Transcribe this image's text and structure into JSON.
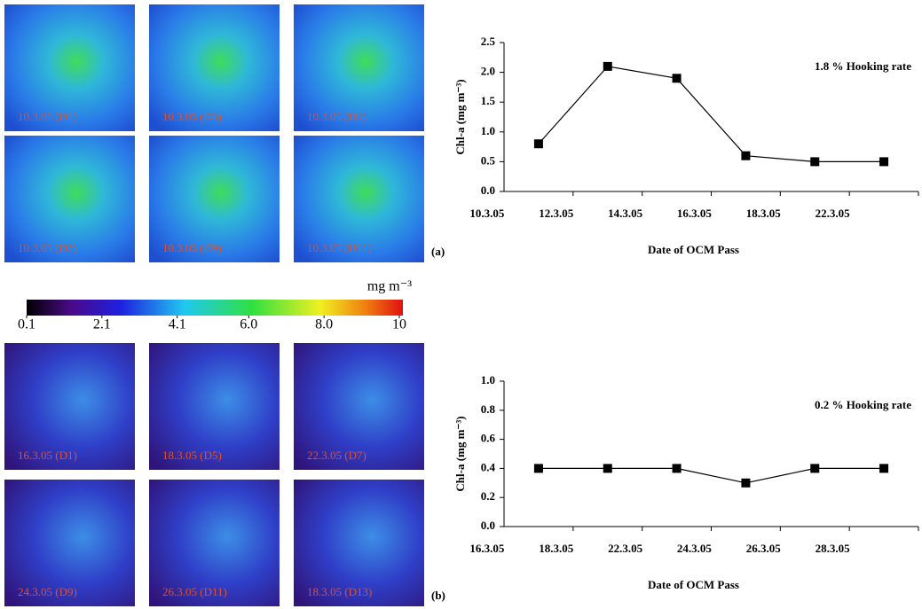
{
  "chart_data": [
    {
      "type": "line",
      "categories": [
        "10.3.05",
        "12.3.05",
        "14.3.05",
        "16.3.05",
        "18.3.05",
        "22.3.05"
      ],
      "values": [
        0.8,
        2.1,
        1.9,
        0.6,
        0.5,
        0.5
      ],
      "color": "#000000",
      "ylim": [
        0,
        2.5
      ],
      "yticks": [
        {
          "value": 0,
          "label": "0.0"
        },
        0.5,
        {
          "value": 1,
          "label": "1.0"
        },
        1.5,
        {
          "value": 2,
          "label": "2.0"
        },
        2.5
      ],
      "y_label": "Chl-a (mg m⁻³)",
      "x_label": "Date of OCM Pass",
      "annotation": "1.8 % Hooking rate"
    },
    {
      "type": "line",
      "categories": [
        "16.3.05",
        "18.3.05",
        "22.3.05",
        "24.3.05",
        "26.3.05",
        "28.3.05"
      ],
      "values": [
        0.4,
        0.4,
        0.4,
        0.3,
        0.4,
        0.4
      ],
      "color": "#000000",
      "ylim": [
        0,
        1
      ],
      "yticks": [
        {
          "value": 0,
          "label": "0.0"
        },
        0.2,
        0.4,
        0.6,
        0.8,
        {
          "value": 1,
          "label": "1.0"
        }
      ],
      "y_label": "Chl-a (mg m⁻³)",
      "x_label": "Date of OCM Pass",
      "annotation": "0.2 % Hooking rate"
    }
  ],
  "panels": [
    {
      "label": "(a)",
      "tiles": [
        "10.3.05 (D1)",
        "10.3.05 (D3)",
        "10.3.05 (D5)",
        "10.3.05 (D7)",
        "10.3.05 (D9)",
        "10.3.05 (D11)"
      ]
    },
    {
      "label": "(b)",
      "tiles": [
        "16.3.05 (D1)",
        "18.3.05 (D5)",
        "22.3.05 (D7)",
        "24.3.05 (D9)",
        "26.3.05 (D11)",
        "18.3.05 (D13)"
      ]
    }
  ],
  "colorbar": {
    "unit": "mg m⁻³",
    "xlim": [
      0.1,
      10
    ],
    "xticks": [
      0.1,
      2.1,
      4.1,
      {
        "value": 6,
        "label": "6.0"
      },
      {
        "value": 8,
        "label": "8.0"
      },
      10
    ]
  }
}
